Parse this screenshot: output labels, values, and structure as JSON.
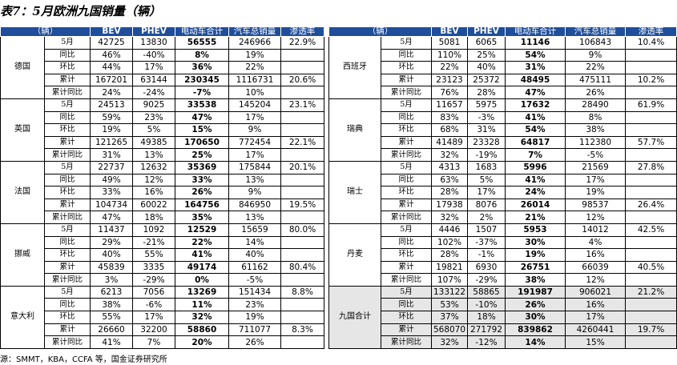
{
  "title": "表7：5月欧洲九国销量（辆）",
  "headers": [
    "（辆）",
    "BEV",
    "PHEV",
    "电动车合计",
    "汽车总销量",
    "渗透率"
  ],
  "tables": [
    {
      "groups": [
        {
          "name": "德国",
          "rows": [
            {
              "label": "5月",
              "cells": [
                "42725",
                "13830",
                "56555",
                "246966",
                "22.9%"
              ]
            },
            {
              "label": "同比",
              "cells": [
                "46%",
                "-40%",
                "8%",
                "19%"
              ]
            },
            {
              "label": "环比",
              "cells": [
                "44%",
                "17%",
                "36%",
                "22%"
              ]
            },
            {
              "label": "累计",
              "cells": [
                "167201",
                "63144",
                "230345",
                "1116731",
                "20.6%"
              ]
            },
            {
              "label": "累计同比",
              "cells": [
                "24%",
                "-24%",
                "-7%",
                "10%"
              ]
            }
          ]
        },
        {
          "name": "英国",
          "rows": [
            {
              "label": "5月",
              "cells": [
                "24513",
                "9025",
                "33538",
                "145204",
                "23.1%"
              ]
            },
            {
              "label": "同比",
              "cells": [
                "59%",
                "23%",
                "47%",
                "17%"
              ]
            },
            {
              "label": "环比",
              "cells": [
                "19%",
                "5%",
                "15%",
                "9%"
              ]
            },
            {
              "label": "累计",
              "cells": [
                "121265",
                "49385",
                "170650",
                "772454",
                "22.1%"
              ]
            },
            {
              "label": "累计同比",
              "cells": [
                "31%",
                "13%",
                "25%",
                "17%"
              ]
            }
          ]
        },
        {
          "name": "法国",
          "rows": [
            {
              "label": "5月",
              "cells": [
                "22737",
                "12632",
                "35369",
                "175844",
                "20.1%"
              ]
            },
            {
              "label": "同比",
              "cells": [
                "49%",
                "12%",
                "33%",
                "13%"
              ]
            },
            {
              "label": "环比",
              "cells": [
                "33%",
                "16%",
                "26%",
                "9%"
              ]
            },
            {
              "label": "累计",
              "cells": [
                "104734",
                "60022",
                "164756",
                "846950",
                "19.5%"
              ]
            },
            {
              "label": "累计同比",
              "cells": [
                "47%",
                "18%",
                "35%",
                "13%"
              ]
            }
          ]
        },
        {
          "name": "挪威",
          "rows": [
            {
              "label": "5月",
              "cells": [
                "11437",
                "1092",
                "12529",
                "15659",
                "80.0%"
              ]
            },
            {
              "label": "同比",
              "cells": [
                "29%",
                "-21%",
                "22%",
                "14%"
              ]
            },
            {
              "label": "环比",
              "cells": [
                "40%",
                "55%",
                "41%",
                "40%"
              ]
            },
            {
              "label": "累计",
              "cells": [
                "45839",
                "3335",
                "49174",
                "61162",
                "80.4%"
              ]
            },
            {
              "label": "累计同比",
              "cells": [
                "3%",
                "-29%",
                "0%",
                "-5%"
              ]
            }
          ]
        },
        {
          "name": "意大利",
          "rows": [
            {
              "label": "5月",
              "cells": [
                "6213",
                "7056",
                "13269",
                "151434",
                "8.8%"
              ]
            },
            {
              "label": "同比",
              "cells": [
                "38%",
                "-6%",
                "11%",
                "23%"
              ]
            },
            {
              "label": "环比",
              "cells": [
                "55%",
                "17%",
                "32%",
                "19%"
              ]
            },
            {
              "label": "累计",
              "cells": [
                "26660",
                "32200",
                "58860",
                "711077",
                "8.3%"
              ]
            },
            {
              "label": "累计同比",
              "cells": [
                "41%",
                "7%",
                "20%",
                "26%"
              ]
            }
          ]
        }
      ]
    },
    {
      "groups": [
        {
          "name": "西班牙",
          "rows": [
            {
              "label": "5月",
              "cells": [
                "5081",
                "6065",
                "11146",
                "106843",
                "10.4%"
              ]
            },
            {
              "label": "同比",
              "cells": [
                "110%",
                "25%",
                "54%",
                "9%"
              ]
            },
            {
              "label": "环比",
              "cells": [
                "22%",
                "40%",
                "31%",
                "22%"
              ]
            },
            {
              "label": "累计",
              "cells": [
                "23123",
                "25372",
                "48495",
                "475111",
                "10.2%"
              ]
            },
            {
              "label": "累计同比",
              "cells": [
                "76%",
                "28%",
                "47%",
                "26%"
              ]
            }
          ]
        },
        {
          "name": "瑞典",
          "rows": [
            {
              "label": "5月",
              "cells": [
                "11657",
                "5975",
                "17632",
                "28490",
                "61.9%"
              ]
            },
            {
              "label": "同比",
              "cells": [
                "83%",
                "-3%",
                "41%",
                "8%"
              ]
            },
            {
              "label": "环比",
              "cells": [
                "68%",
                "31%",
                "54%",
                "38%"
              ]
            },
            {
              "label": "累计",
              "cells": [
                "41489",
                "23328",
                "64817",
                "112380",
                "57.7%"
              ]
            },
            {
              "label": "累计同比",
              "cells": [
                "32%",
                "-19%",
                "7%",
                "-5%"
              ]
            }
          ]
        },
        {
          "name": "瑞士",
          "rows": [
            {
              "label": "5月",
              "cells": [
                "4313",
                "1683",
                "5996",
                "21569",
                "27.8%"
              ]
            },
            {
              "label": "同比",
              "cells": [
                "63%",
                "5%",
                "41%",
                "17%"
              ]
            },
            {
              "label": "环比",
              "cells": [
                "28%",
                "17%",
                "24%",
                "19%"
              ]
            },
            {
              "label": "累计",
              "cells": [
                "17938",
                "8076",
                "26014",
                "98537",
                "26.4%"
              ]
            },
            {
              "label": "累计同比",
              "cells": [
                "32%",
                "2%",
                "21%",
                "12%"
              ]
            }
          ]
        },
        {
          "name": "丹麦",
          "rows": [
            {
              "label": "5月",
              "cells": [
                "4446",
                "1507",
                "5953",
                "14012",
                "42.5%"
              ]
            },
            {
              "label": "同比",
              "cells": [
                "102%",
                "-37%",
                "30%",
                "4%"
              ]
            },
            {
              "label": "环比",
              "cells": [
                "28%",
                "-1%",
                "19%",
                "16%"
              ]
            },
            {
              "label": "累计",
              "cells": [
                "19821",
                "6930",
                "26751",
                "66039",
                "40.5%"
              ]
            },
            {
              "label": "累计同比",
              "cells": [
                "107%",
                "-29%",
                "38%",
                "12%"
              ]
            }
          ]
        },
        {
          "name": "九国合计",
          "rows": [
            {
              "label": "5月",
              "cells": [
                "133122",
                "58865",
                "191987",
                "906021",
                "21.2%"
              ]
            },
            {
              "label": "同比",
              "cells": [
                "53%",
                "-10%",
                "26%",
                "16%"
              ]
            },
            {
              "label": "环比",
              "cells": [
                "37%",
                "18%",
                "30%",
                "17%"
              ]
            },
            {
              "label": "累计",
              "cells": [
                "568070",
                "271792",
                "839862",
                "4260441",
                "19.7%"
              ]
            },
            {
              "label": "累计同比",
              "cells": [
                "32%",
                "-12%",
                "14%",
                "15%"
              ]
            }
          ]
        }
      ]
    }
  ],
  "source": "源：SMMT，KBA，CCFA 等，国金证券研究所"
}
